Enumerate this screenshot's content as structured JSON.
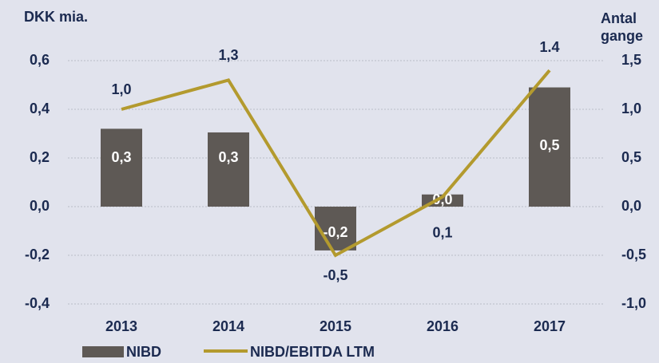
{
  "chart_data": {
    "type": "bar_line",
    "y_label": "DKK mia.",
    "y2_label": "Antal gange",
    "categories": [
      "2013",
      "2014",
      "2015",
      "2016",
      "2017"
    ],
    "series": [
      {
        "name": "NIBD",
        "type": "bar",
        "color": "#5e5955",
        "values": [
          0.32,
          0.305,
          -0.18,
          0.05,
          0.49
        ],
        "value_labels": [
          "0,3",
          "0,3",
          "-0,2",
          "0,0",
          "0,5"
        ]
      },
      {
        "name": "NIBD/EBITDA LTM",
        "type": "line",
        "axis": "y2",
        "color": "#b39a2e",
        "values": [
          1.0,
          1.3,
          -0.5,
          0.1,
          1.4
        ],
        "value_labels": [
          "1,0",
          "1,3",
          "-0,5",
          "0,1",
          "1.4"
        ]
      }
    ],
    "ylim": [
      -0.4,
      0.6
    ],
    "yticks": [
      {
        "value": -0.4,
        "label": "-0,4"
      },
      {
        "value": -0.2,
        "label": "-0,2"
      },
      {
        "value": 0,
        "label": "0,0"
      },
      {
        "value": 0.2,
        "label": "0,2"
      },
      {
        "value": 0.4,
        "label": "0,4"
      },
      {
        "value": 0.6,
        "label": "0,6"
      }
    ],
    "y2lim": [
      -1.0,
      1.5
    ],
    "y2ticks": [
      {
        "value": -1.0,
        "label": "-1,0"
      },
      {
        "value": -0.5,
        "label": "-0,5"
      },
      {
        "value": 0,
        "label": "0,0"
      },
      {
        "value": 0.5,
        "label": "0,5"
      },
      {
        "value": 1.0,
        "label": "1,0"
      },
      {
        "value": 1.5,
        "label": "1,5"
      }
    ],
    "grid": true
  }
}
